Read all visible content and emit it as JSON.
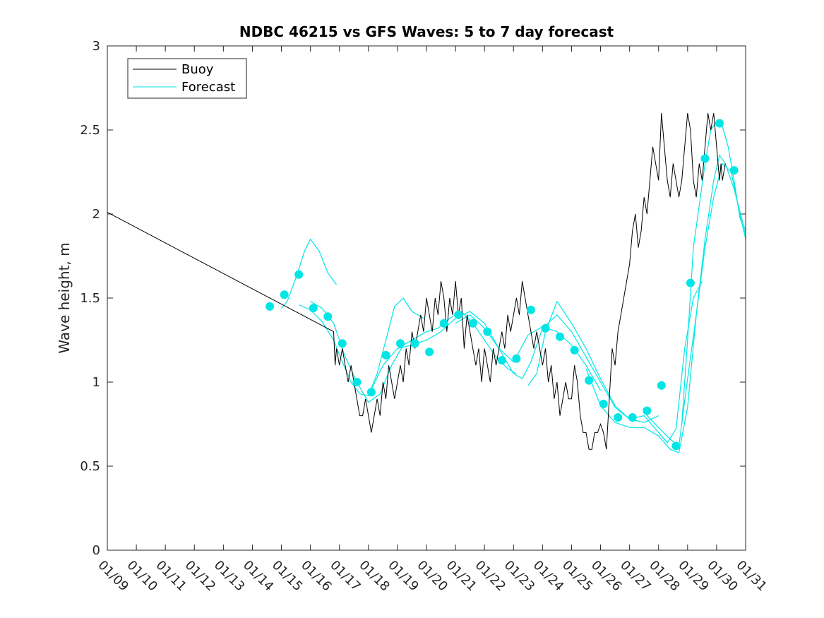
{
  "chart_data": {
    "type": "line",
    "title": "NDBC 46215 vs GFS Waves: 5 to 7 day forecast",
    "xlabel": "",
    "ylabel": "Wave height, m",
    "xlim": [
      0,
      22
    ],
    "ylim": [
      0,
      3
    ],
    "x_ticks": [
      {
        "x": 0,
        "label": "01/09"
      },
      {
        "x": 1,
        "label": "01/10"
      },
      {
        "x": 2,
        "label": "01/11"
      },
      {
        "x": 3,
        "label": "01/12"
      },
      {
        "x": 4,
        "label": "01/13"
      },
      {
        "x": 5,
        "label": "01/14"
      },
      {
        "x": 6,
        "label": "01/15"
      },
      {
        "x": 7,
        "label": "01/16"
      },
      {
        "x": 8,
        "label": "01/17"
      },
      {
        "x": 9,
        "label": "01/18"
      },
      {
        "x": 10,
        "label": "01/19"
      },
      {
        "x": 11,
        "label": "01/20"
      },
      {
        "x": 12,
        "label": "01/21"
      },
      {
        "x": 13,
        "label": "01/22"
      },
      {
        "x": 14,
        "label": "01/23"
      },
      {
        "x": 15,
        "label": "01/24"
      },
      {
        "x": 16,
        "label": "01/25"
      },
      {
        "x": 17,
        "label": "01/26"
      },
      {
        "x": 18,
        "label": "01/27"
      },
      {
        "x": 19,
        "label": "01/28"
      },
      {
        "x": 20,
        "label": "01/29"
      },
      {
        "x": 21,
        "label": "01/30"
      },
      {
        "x": 22,
        "label": "01/31"
      }
    ],
    "y_ticks": [
      {
        "y": 0,
        "label": "0"
      },
      {
        "y": 0.5,
        "label": "0.5"
      },
      {
        "y": 1,
        "label": "1"
      },
      {
        "y": 1.5,
        "label": "1.5"
      },
      {
        "y": 2,
        "label": "2"
      },
      {
        "y": 2.5,
        "label": "2.5"
      },
      {
        "y": 3,
        "label": "3"
      }
    ],
    "legend": {
      "position": "top-left",
      "entries": [
        {
          "label": "Buoy",
          "color": "#000000"
        },
        {
          "label": "Forecast",
          "color": "#00e5e5"
        }
      ]
    },
    "series": [
      {
        "name": "Buoy",
        "color": "#000000",
        "x": [
          0,
          7.8,
          7.85,
          7.9,
          8.0,
          8.1,
          8.2,
          8.3,
          8.4,
          8.5,
          8.6,
          8.7,
          8.8,
          8.9,
          9.0,
          9.1,
          9.2,
          9.3,
          9.4,
          9.5,
          9.6,
          9.7,
          9.8,
          9.9,
          10.0,
          10.1,
          10.2,
          10.3,
          10.4,
          10.5,
          10.6,
          10.7,
          10.8,
          10.9,
          11.0,
          11.1,
          11.2,
          11.3,
          11.4,
          11.5,
          11.6,
          11.7,
          11.8,
          11.9,
          12.0,
          12.1,
          12.2,
          12.3,
          12.4,
          12.5,
          12.6,
          12.7,
          12.8,
          12.9,
          13.0,
          13.1,
          13.2,
          13.3,
          13.4,
          13.5,
          13.6,
          13.7,
          13.8,
          13.9,
          14.0,
          14.1,
          14.2,
          14.3,
          14.4,
          14.5,
          14.6,
          14.7,
          14.8,
          14.9,
          15.0,
          15.1,
          15.2,
          15.3,
          15.4,
          15.5,
          15.6,
          15.7,
          15.8,
          15.9,
          16.0,
          16.1,
          16.2,
          16.3,
          16.4,
          16.5,
          16.6,
          16.7,
          16.8,
          16.9,
          17.0,
          17.1,
          17.2,
          17.3,
          17.4,
          17.5,
          17.6,
          17.7,
          17.8,
          17.9,
          18.0,
          18.1,
          18.2,
          18.3,
          18.4,
          18.5,
          18.6,
          18.7,
          18.8,
          18.9,
          19.0,
          19.1,
          19.2,
          19.3,
          19.4,
          19.5,
          19.6,
          19.7,
          19.8,
          19.9,
          20.0,
          20.1,
          20.2,
          20.3,
          20.4,
          20.5,
          20.6,
          20.7,
          20.8,
          20.9,
          21.0,
          21.1,
          21.15,
          21.2,
          21.3
        ],
        "y": [
          2.01,
          1.3,
          1.1,
          1.2,
          1.1,
          1.2,
          1.1,
          1.0,
          1.1,
          1.0,
          0.9,
          0.8,
          0.8,
          0.9,
          0.8,
          0.7,
          0.8,
          0.9,
          0.8,
          1.0,
          0.9,
          1.1,
          1.0,
          0.9,
          1.0,
          1.1,
          1.0,
          1.2,
          1.1,
          1.3,
          1.2,
          1.3,
          1.4,
          1.3,
          1.5,
          1.4,
          1.3,
          1.5,
          1.4,
          1.6,
          1.5,
          1.3,
          1.5,
          1.4,
          1.6,
          1.4,
          1.5,
          1.2,
          1.4,
          1.3,
          1.2,
          1.1,
          1.2,
          1.0,
          1.2,
          1.1,
          1.0,
          1.2,
          1.1,
          1.2,
          1.3,
          1.2,
          1.4,
          1.3,
          1.4,
          1.5,
          1.4,
          1.6,
          1.5,
          1.4,
          1.3,
          1.2,
          1.3,
          1.2,
          1.1,
          1.2,
          1.0,
          1.1,
          0.9,
          1.0,
          0.8,
          0.9,
          1.0,
          0.9,
          0.9,
          1.1,
          1.0,
          0.8,
          0.7,
          0.7,
          0.6,
          0.6,
          0.7,
          0.7,
          0.75,
          0.7,
          0.6,
          0.9,
          1.2,
          1.1,
          1.3,
          1.4,
          1.5,
          1.6,
          1.7,
          1.9,
          2.0,
          1.8,
          1.9,
          2.1,
          2.0,
          2.2,
          2.4,
          2.3,
          2.2,
          2.6,
          2.4,
          2.2,
          2.1,
          2.3,
          2.2,
          2.1,
          2.2,
          2.4,
          2.6,
          2.5,
          2.2,
          2.1,
          2.3,
          2.2,
          2.4,
          2.6,
          2.5,
          2.6,
          2.4,
          2.2,
          2.3,
          2.2,
          2.3
        ]
      }
    ],
    "forecast_lines": [
      {
        "name": "Forecast run 1",
        "x": [
          6.0,
          6.2,
          6.5,
          6.8,
          7.0,
          7.3,
          7.6,
          7.9
        ],
        "y": [
          1.44,
          1.48,
          1.62,
          1.78,
          1.85,
          1.78,
          1.65,
          1.58
        ]
      },
      {
        "name": "Forecast run 2",
        "x": [
          6.6,
          7.0,
          7.4,
          7.8,
          8.1,
          8.4,
          8.7,
          9.0,
          9.3,
          9.6,
          9.9,
          10.2,
          10.5,
          10.9
        ],
        "y": [
          1.46,
          1.43,
          1.36,
          1.25,
          1.12,
          1.0,
          0.93,
          0.92,
          1.05,
          1.25,
          1.45,
          1.5,
          1.42,
          1.38
        ]
      },
      {
        "name": "Forecast run 3",
        "x": [
          7.0,
          7.4,
          7.8,
          8.2,
          8.6,
          9.0,
          9.4,
          9.8,
          10.2,
          10.6,
          11.0,
          11.4,
          11.8,
          12.2,
          12.6,
          13.0,
          13.4,
          13.8,
          14.1
        ],
        "y": [
          1.48,
          1.44,
          1.35,
          1.15,
          1.0,
          0.88,
          0.93,
          1.1,
          1.22,
          1.26,
          1.3,
          1.32,
          1.38,
          1.42,
          1.35,
          1.25,
          1.15,
          1.08,
          1.05
        ]
      },
      {
        "name": "Forecast run 4",
        "x": [
          9.0,
          9.5,
          10.0,
          10.5,
          11.0,
          11.5,
          12.0,
          12.5,
          13.0,
          13.5,
          14.0,
          14.5,
          15.0,
          15.5,
          16.0,
          16.5,
          17.0
        ],
        "y": [
          0.92,
          1.1,
          1.2,
          1.22,
          1.25,
          1.3,
          1.38,
          1.42,
          1.35,
          1.2,
          1.12,
          1.28,
          1.33,
          1.3,
          1.22,
          1.1,
          0.95
        ]
      },
      {
        "name": "Forecast run 5",
        "x": [
          12.0,
          12.5,
          13.0,
          13.5,
          14.0,
          14.3,
          14.6,
          15.0,
          15.5,
          16.0,
          16.5,
          17.0,
          17.5,
          18.0,
          18.5,
          19.0
        ],
        "y": [
          1.35,
          1.4,
          1.32,
          1.2,
          1.05,
          1.02,
          1.12,
          1.32,
          1.4,
          1.3,
          1.15,
          1.0,
          0.85,
          0.78,
          0.76,
          0.8
        ]
      },
      {
        "name": "Forecast run 6",
        "x": [
          14.5,
          14.8,
          15.1,
          15.5,
          16.0,
          16.5,
          17.0,
          17.5,
          18.0,
          18.5,
          19.0,
          19.3,
          19.6,
          19.9,
          20.2,
          20.5
        ],
        "y": [
          0.98,
          1.05,
          1.3,
          1.48,
          1.35,
          1.2,
          1.02,
          0.86,
          0.78,
          0.8,
          0.7,
          0.64,
          0.72,
          1.2,
          1.5,
          1.6
        ]
      },
      {
        "name": "Forecast run 7",
        "x": [
          16.5,
          17.0,
          17.5,
          18.0,
          18.5,
          19.0,
          19.4,
          19.7,
          20.0,
          20.3,
          20.6,
          20.9,
          21.2,
          21.5,
          21.8,
          22.0
        ],
        "y": [
          1.08,
          0.86,
          0.76,
          0.73,
          0.73,
          0.68,
          0.6,
          0.58,
          0.85,
          1.4,
          1.8,
          2.1,
          2.3,
          2.25,
          2.0,
          1.85
        ]
      },
      {
        "name": "Forecast run 8",
        "x": [
          18.5,
          19.0,
          19.4,
          19.7,
          20.0,
          20.3,
          20.6,
          20.9,
          21.1,
          21.3,
          21.6,
          21.9,
          22.0
        ],
        "y": [
          0.82,
          0.73,
          0.66,
          0.62,
          1.02,
          1.4,
          1.85,
          2.2,
          2.35,
          2.3,
          2.15,
          1.95,
          1.9
        ]
      },
      {
        "name": "Forecast run 9",
        "x": [
          19.8,
          20.0,
          20.2,
          20.4,
          20.6,
          20.8,
          21.0,
          21.2,
          21.4,
          21.6,
          21.8,
          22.0
        ],
        "y": [
          0.75,
          1.25,
          1.8,
          2.05,
          2.3,
          2.5,
          2.55,
          2.52,
          2.4,
          2.2,
          1.98,
          1.88
        ]
      }
    ],
    "forecast_points": {
      "x": [
        5.6,
        6.1,
        6.6,
        7.1,
        7.6,
        8.1,
        8.6,
        9.1,
        9.6,
        10.1,
        10.6,
        11.1,
        11.6,
        12.1,
        12.6,
        13.1,
        13.6,
        14.1,
        14.6,
        15.1,
        15.6,
        16.1,
        16.6,
        17.1,
        17.6,
        18.1,
        18.6,
        19.1,
        19.6,
        20.1,
        20.6,
        21.1,
        21.6
      ],
      "y": [
        1.45,
        1.52,
        1.64,
        1.44,
        1.39,
        1.23,
        1.0,
        0.94,
        1.16,
        1.23,
        1.23,
        1.18,
        1.35,
        1.4,
        1.35,
        1.3,
        1.13,
        1.14,
        1.43,
        1.32,
        1.27,
        1.19,
        1.01,
        0.87,
        0.79,
        0.79,
        0.83,
        0.98,
        0.62,
        1.59,
        2.33,
        2.54,
        2.26
      ]
    },
    "forecast_color": "#00e5e5"
  }
}
